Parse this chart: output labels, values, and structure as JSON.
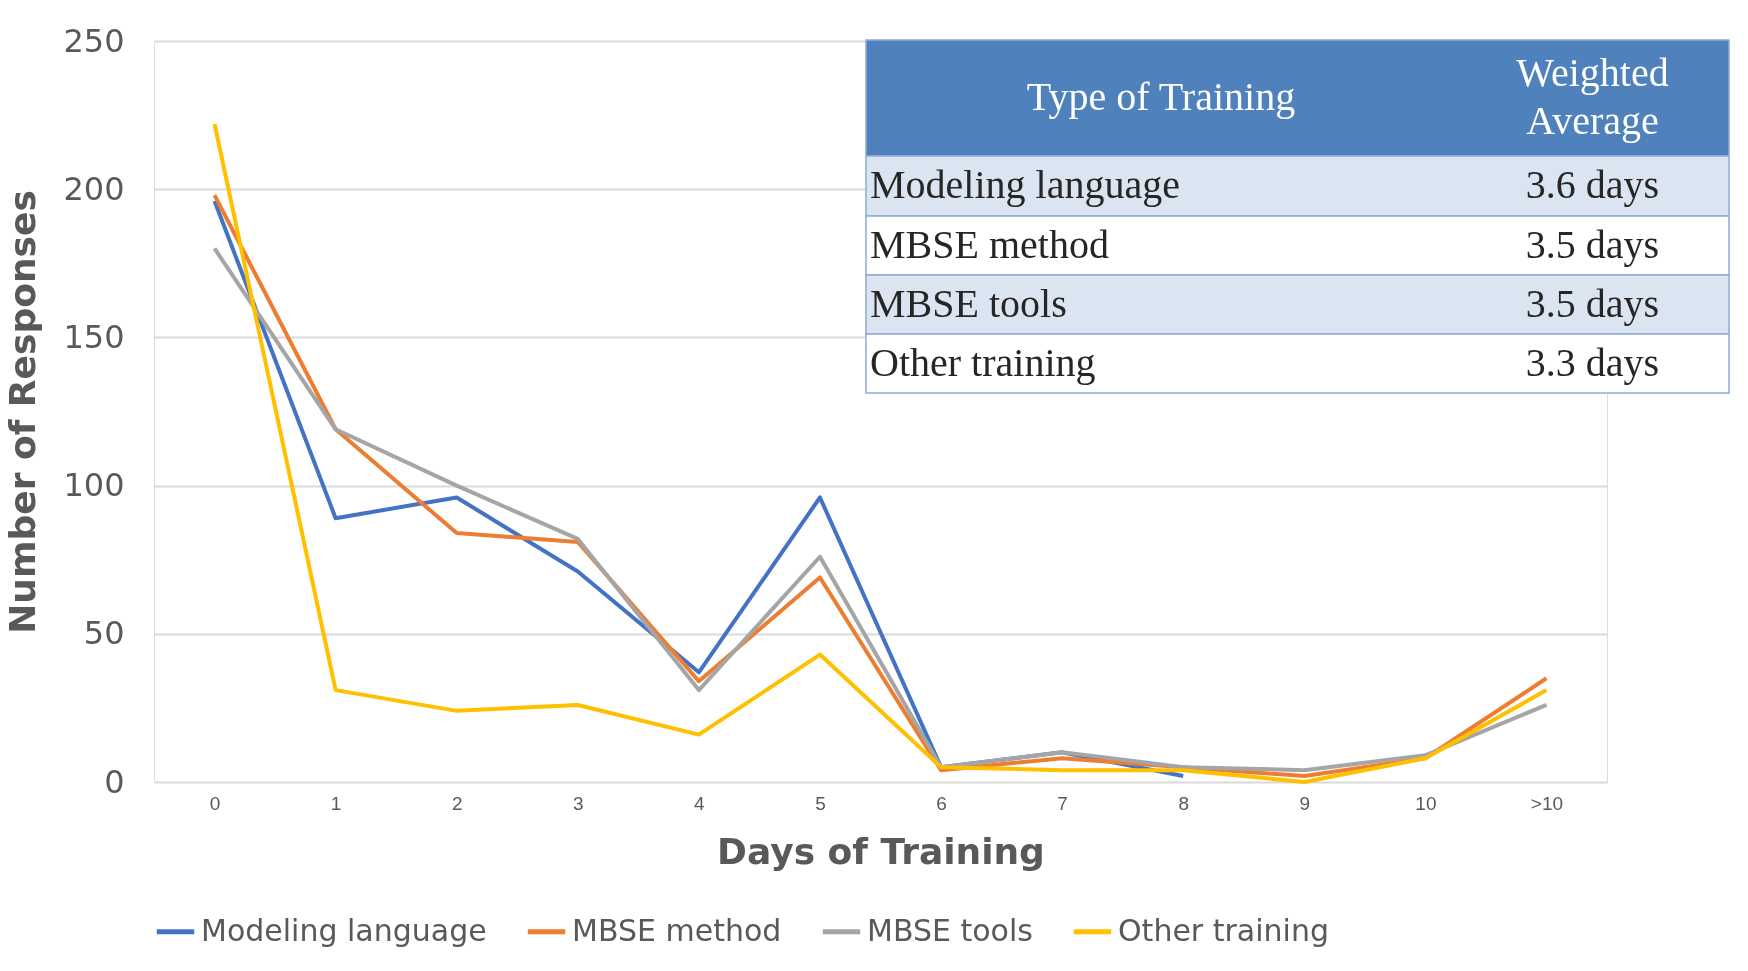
{
  "chart_data": {
    "type": "line",
    "xlabel": "Days of Training",
    "ylabel": "Number of Responses",
    "categories": [
      "0",
      "1",
      "2",
      "3",
      "4",
      "5",
      "6",
      "7",
      "8",
      "9",
      "10",
      ">10"
    ],
    "ylim": [
      0,
      250
    ],
    "yticks": [
      0,
      50,
      100,
      150,
      200,
      250
    ],
    "grid": "y",
    "legend": "bottom",
    "marker": "none",
    "line_style": "solid",
    "series": [
      {
        "name": "Modeling language",
        "color": "#4472c4",
        "values": [
          196,
          89,
          96,
          71,
          37,
          96,
          5,
          10,
          2,
          null,
          null,
          null
        ]
      },
      {
        "name": "MBSE method",
        "color": "#ed7d31",
        "values": [
          198,
          119,
          84,
          81,
          34,
          69,
          4,
          8,
          5,
          2,
          8,
          35
        ]
      },
      {
        "name": "MBSE tools",
        "color": "#a5a5a5",
        "values": [
          180,
          119,
          100,
          82,
          31,
          76,
          5,
          10,
          5,
          4,
          9,
          26
        ]
      },
      {
        "name": "Other training",
        "color": "#ffc000",
        "values": [
          222,
          31,
          24,
          26,
          16,
          43,
          5,
          4,
          4,
          0,
          8,
          31
        ]
      }
    ],
    "annotations": [
      "Type of Training",
      "Weighted Average",
      "Modeling language",
      "3.6 days",
      "MBSE method",
      "3.5 days",
      "MBSE tools",
      "3.5 days",
      "Other training",
      "3.3 days"
    ]
  }
}
